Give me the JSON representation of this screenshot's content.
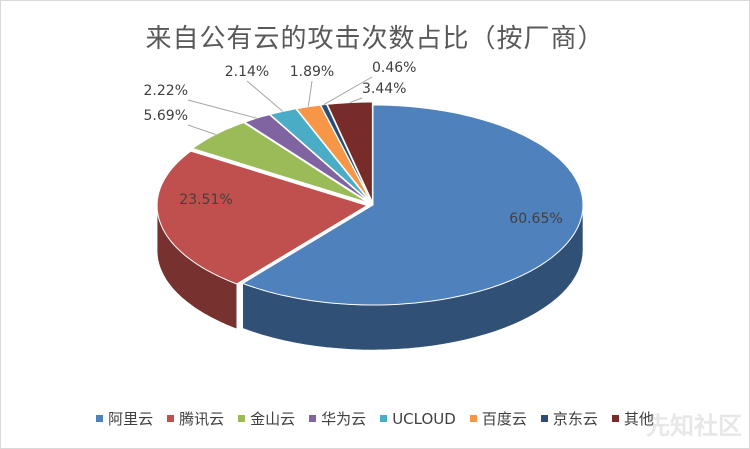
{
  "chart_data": {
    "type": "pie",
    "title": "来自公有云的攻击次数占比（按厂商）",
    "categories": [
      "阿里云",
      "腾讯云",
      "金山云",
      "华为云",
      "UCLOUD",
      "百度云",
      "京东云",
      "其他"
    ],
    "values": [
      60.65,
      23.51,
      5.69,
      2.22,
      2.14,
      1.89,
      0.46,
      3.44
    ],
    "data_labels": [
      "60.65%",
      "23.51%",
      "5.69%",
      "2.22%",
      "2.14%",
      "1.89%",
      "0.46%",
      "3.44%"
    ],
    "colors": [
      "#4F81BD",
      "#C0504D",
      "#9BBB59",
      "#8064A2",
      "#4BACC6",
      "#F79646",
      "#2C4D75",
      "#772C2A"
    ],
    "legend_position": "bottom",
    "style": "3d-exploded-pie"
  },
  "watermark": "先知社区"
}
